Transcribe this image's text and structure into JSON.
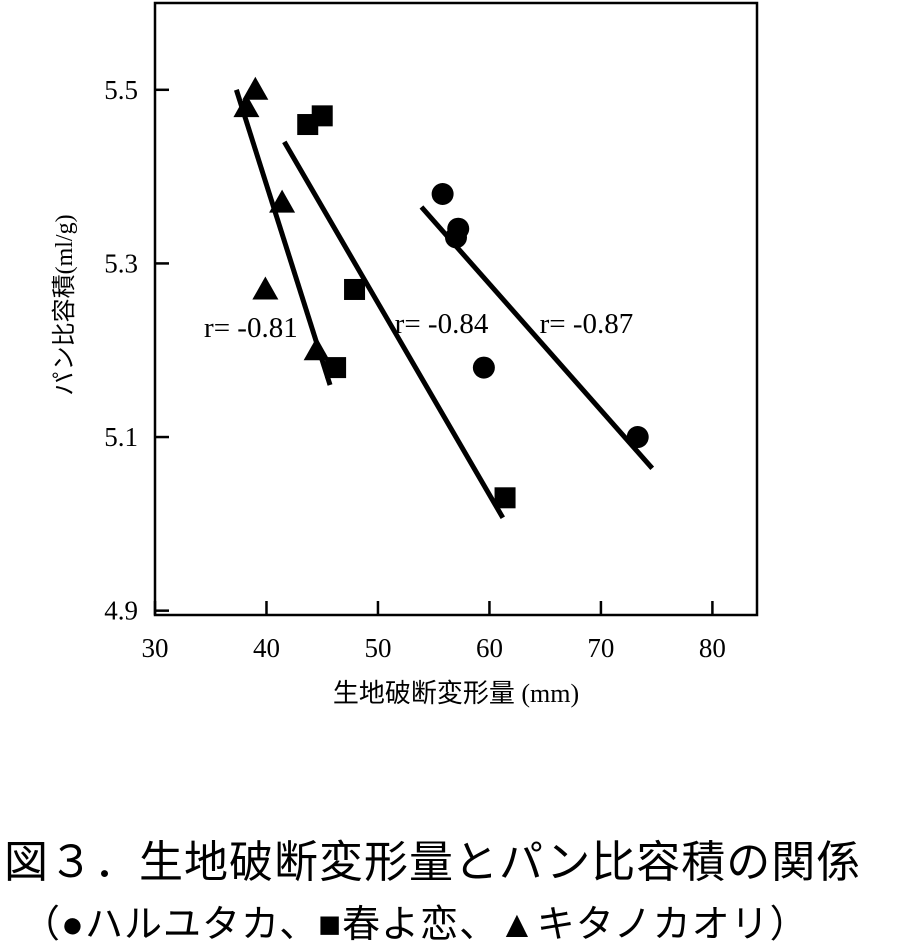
{
  "figure_caption": {
    "line1": "図３．生地破断変形量とパン比容積の関係",
    "line2": "（●ハルユタカ、■春よ恋、▲キタノカオリ）"
  },
  "chart_data": {
    "type": "scatter",
    "title": "",
    "xlabel": "生地破断変形量 (mm)",
    "ylabel": "パン比容積(ml/g)",
    "xlim": [
      30,
      84
    ],
    "ylim": [
      4.895,
      5.6
    ],
    "x_ticks": [
      30,
      40,
      50,
      60,
      70,
      80
    ],
    "y_ticks": [
      4.9,
      5.1,
      5.3,
      5.5
    ],
    "grid": false,
    "legend_position": "in-caption",
    "colors": {
      "foreground": "#000000",
      "background": "#ffffff"
    },
    "series": [
      {
        "name": "ハルユタカ",
        "marker": "circle",
        "points": [
          [
            55.8,
            5.38
          ],
          [
            57.2,
            5.34
          ],
          [
            57.0,
            5.33
          ],
          [
            59.5,
            5.18
          ],
          [
            73.3,
            5.1
          ]
        ],
        "regression": {
          "r_label": "r= -0.87",
          "line": [
            [
              53.9,
              5.365
            ],
            [
              74.6,
              5.064
            ]
          ],
          "label_anchor": [
            64.5,
            5.22
          ]
        }
      },
      {
        "name": "春よ恋",
        "marker": "square",
        "points": [
          [
            43.7,
            5.46
          ],
          [
            45.0,
            5.47
          ],
          [
            47.9,
            5.27
          ],
          [
            46.2,
            5.18
          ],
          [
            61.4,
            5.03
          ]
        ],
        "regression": {
          "r_label": "r= -0.84",
          "line": [
            [
              41.6,
              5.44
            ],
            [
              61.2,
              5.007
            ]
          ],
          "label_anchor": [
            51.5,
            5.22
          ]
        }
      },
      {
        "name": "キタノカオリ",
        "marker": "triangle",
        "points": [
          [
            39.0,
            5.5
          ],
          [
            38.2,
            5.48
          ],
          [
            41.4,
            5.37
          ],
          [
            39.9,
            5.27
          ],
          [
            44.5,
            5.2
          ]
        ],
        "regression": {
          "r_label": "r= -0.81",
          "line": [
            [
              37.3,
              5.5
            ],
            [
              45.7,
              5.16
            ]
          ],
          "label_anchor": [
            34.4,
            5.215
          ]
        }
      }
    ]
  }
}
